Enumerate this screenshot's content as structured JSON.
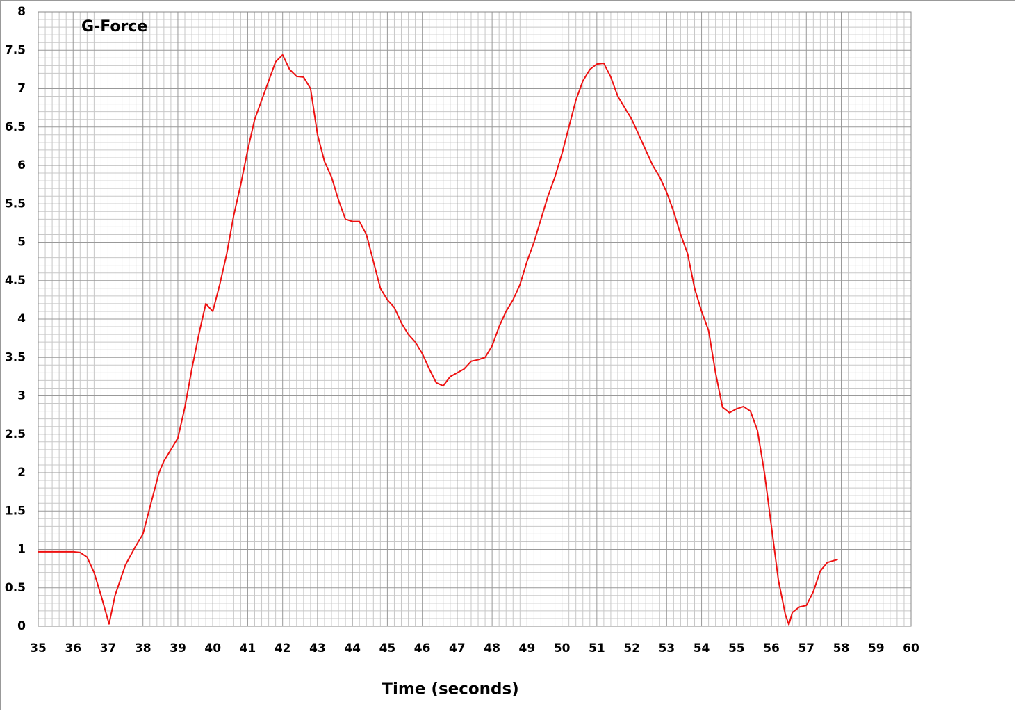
{
  "chart_data": {
    "type": "line",
    "title": "G-Force",
    "x_label": "Time (seconds)",
    "xlim": [
      35,
      60
    ],
    "ylim": [
      0,
      8
    ],
    "xticks": [
      35,
      36,
      37,
      38,
      39,
      40,
      41,
      42,
      43,
      44,
      45,
      46,
      47,
      48,
      49,
      50,
      51,
      52,
      53,
      54,
      55,
      56,
      57,
      58,
      59,
      60
    ],
    "yticks": [
      0,
      0.5,
      1,
      1.5,
      2,
      2.5,
      3,
      3.5,
      4,
      4.5,
      5,
      5.5,
      6,
      6.5,
      7,
      7.5,
      8
    ],
    "grid": true,
    "x": [
      35,
      35.5,
      36,
      36.2,
      36.4,
      36.6,
      36.8,
      37.03,
      37.2,
      37.5,
      37.8,
      38,
      38.2,
      38.46,
      38.6,
      38.8,
      39,
      39.2,
      39.4,
      39.6,
      39.8,
      40,
      40.2,
      40.4,
      40.6,
      40.8,
      41,
      41.2,
      41.4,
      41.6,
      41.8,
      42,
      42.2,
      42.4,
      42.6,
      42.8,
      43,
      43.2,
      43.4,
      43.6,
      43.8,
      44,
      44.2,
      44.4,
      44.6,
      44.8,
      45,
      45.2,
      45.4,
      45.6,
      45.8,
      46,
      46.2,
      46.4,
      46.6,
      46.8,
      47,
      47.2,
      47.4,
      47.6,
      47.8,
      48,
      48.2,
      48.4,
      48.6,
      48.8,
      49,
      49.2,
      49.4,
      49.6,
      49.8,
      50,
      50.2,
      50.4,
      50.6,
      50.8,
      51,
      51.2,
      51.4,
      51.6,
      51.8,
      52,
      52.2,
      52.4,
      52.6,
      52.8,
      53,
      53.2,
      53.4,
      53.6,
      53.8,
      54,
      54.2,
      54.4,
      54.6,
      54.8,
      55,
      55.2,
      55.4,
      55.6,
      55.8,
      56,
      56.2,
      56.4,
      56.5,
      56.6,
      56.8,
      57,
      57.2,
      57.4,
      57.6,
      57.9
    ],
    "series": [
      {
        "name": "G-Force",
        "color": "#ee1111",
        "values": [
          0.97,
          0.97,
          0.97,
          0.96,
          0.9,
          0.7,
          0.4,
          0.03,
          0.4,
          0.8,
          1.05,
          1.2,
          1.55,
          2.0,
          2.15,
          2.3,
          2.45,
          2.85,
          3.35,
          3.8,
          4.2,
          4.1,
          4.45,
          4.85,
          5.35,
          5.75,
          6.2,
          6.6,
          6.85,
          7.1,
          7.35,
          7.44,
          7.25,
          7.16,
          7.15,
          7.0,
          6.4,
          6.05,
          5.85,
          5.55,
          5.3,
          5.27,
          5.27,
          5.1,
          4.75,
          4.4,
          4.25,
          4.15,
          3.95,
          3.8,
          3.7,
          3.55,
          3.35,
          3.17,
          3.13,
          3.25,
          3.3,
          3.35,
          3.45,
          3.47,
          3.5,
          3.65,
          3.9,
          4.1,
          4.25,
          4.45,
          4.75,
          5.0,
          5.3,
          5.6,
          5.85,
          6.15,
          6.5,
          6.85,
          7.1,
          7.25,
          7.32,
          7.33,
          7.15,
          6.9,
          6.75,
          6.6,
          6.4,
          6.2,
          6.0,
          5.85,
          5.65,
          5.4,
          5.1,
          4.85,
          4.4,
          4.1,
          3.85,
          3.3,
          2.85,
          2.78,
          2.83,
          2.86,
          2.8,
          2.55,
          2.0,
          1.3,
          0.6,
          0.15,
          0.02,
          0.18,
          0.25,
          0.27,
          0.45,
          0.72,
          0.83,
          0.87
        ]
      }
    ]
  }
}
